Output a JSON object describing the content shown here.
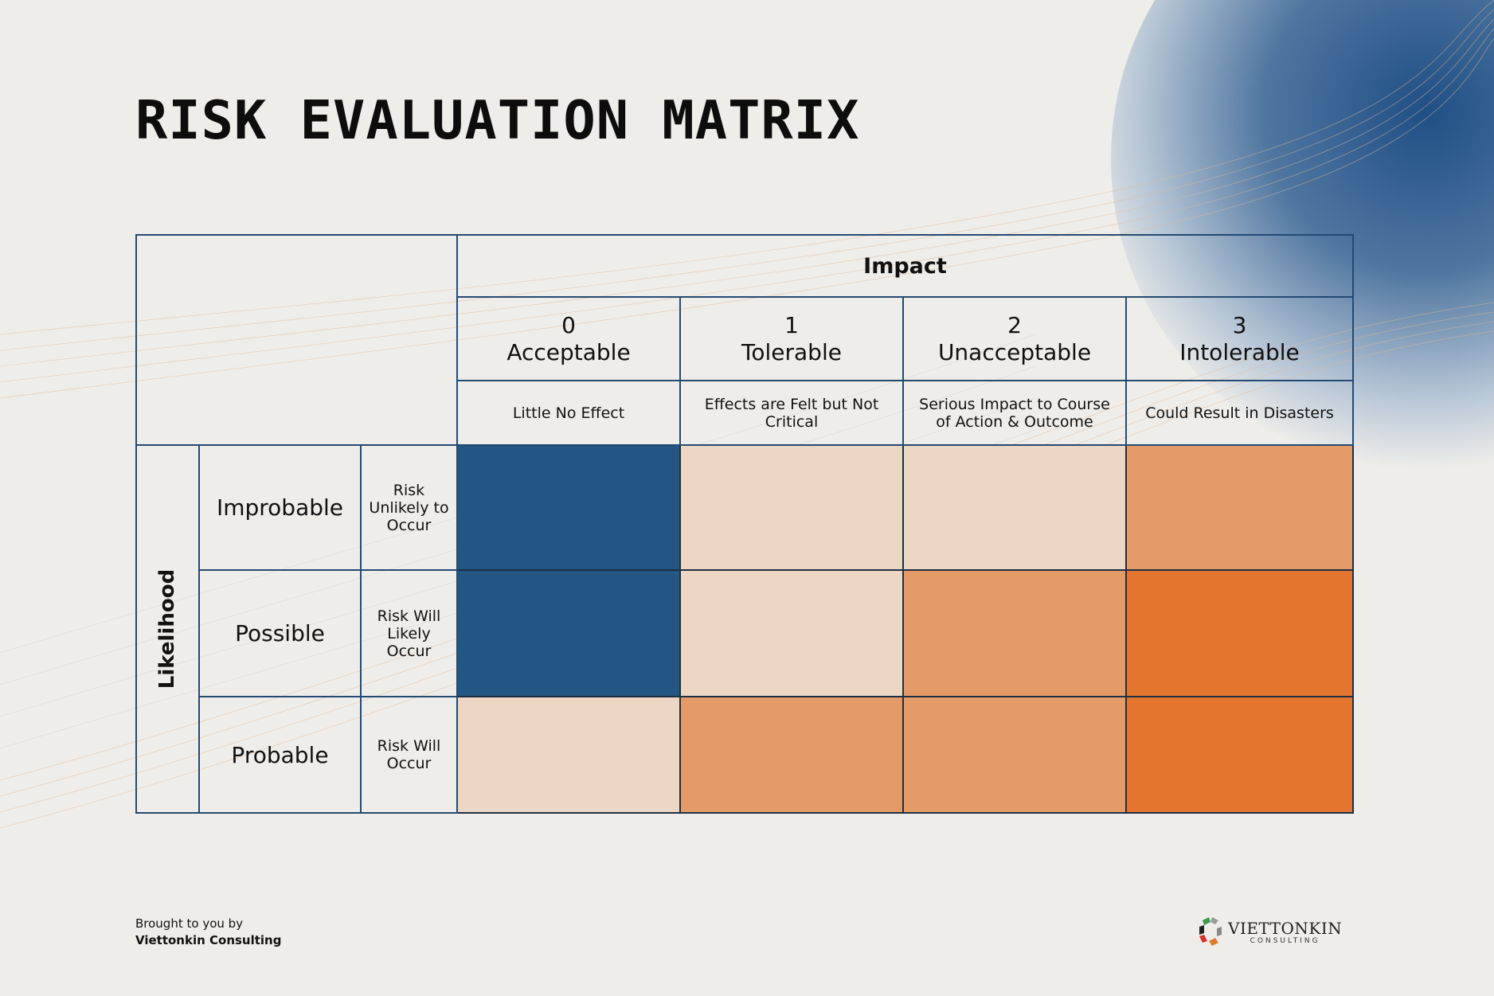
{
  "title": "RISK EVALUATION MATRIX",
  "impact_header": "Impact",
  "impact_levels": [
    {
      "number": "0",
      "label": "Acceptable",
      "description": "Little No Effect"
    },
    {
      "number": "1",
      "label": "Tolerable",
      "description": "Effects are Felt but Not Critical"
    },
    {
      "number": "2",
      "label": "Unacceptable",
      "description": "Serious Impact to Course of Action & Outcome"
    },
    {
      "number": "3",
      "label": "Intolerable",
      "description": "Could Result in Disasters"
    }
  ],
  "likelihood_header": "Likelihood",
  "likelihood_levels": [
    {
      "label": "Improbable",
      "description": "Risk Unlikely to Occur"
    },
    {
      "label": "Possible",
      "description": "Risk Will Likely Occur"
    },
    {
      "label": "Probable",
      "description": "Risk Will Occur"
    }
  ],
  "matrix_colors": {
    "blue": "#245683",
    "peach": "#ecd6c4",
    "orange_light": "#e49b67",
    "orange": "#e3752f"
  },
  "matrix_cells": [
    [
      "blue",
      "peach",
      "peach",
      "orange_light"
    ],
    [
      "blue",
      "peach",
      "orange_light",
      "orange"
    ],
    [
      "peach",
      "orange_light",
      "orange_light",
      "orange"
    ]
  ],
  "footer": {
    "line1": "Brought to you by",
    "line2": "Viettonkin Consulting"
  },
  "logo": {
    "name": "VIETTONKIN",
    "sub": "CONSULTING"
  }
}
